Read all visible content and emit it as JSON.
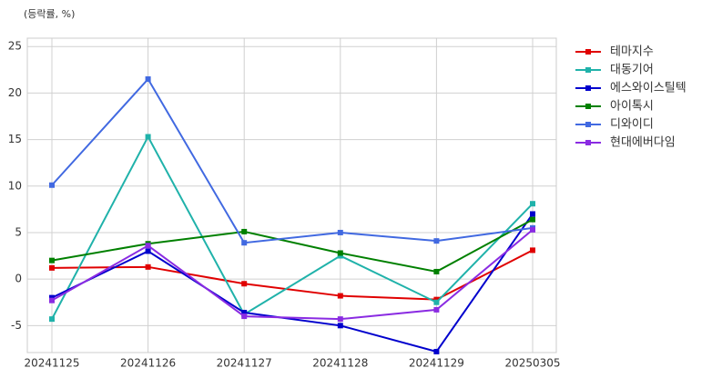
{
  "chart_data": {
    "type": "line",
    "annotation": "(등락률, %)",
    "categories": [
      "20241125",
      "20241126",
      "20241127",
      "20241128",
      "20241129",
      "20250305"
    ],
    "series": [
      {
        "name": "테마지수",
        "color": "#e00000",
        "values": [
          1.2,
          1.3,
          -0.5,
          -1.8,
          -2.2,
          3.1
        ]
      },
      {
        "name": "대동기어",
        "color": "#20b2aa",
        "values": [
          -4.3,
          15.3,
          -3.8,
          2.5,
          -2.5,
          8.1
        ]
      },
      {
        "name": "에스와이스틸텍",
        "color": "#0000cd",
        "values": [
          -2.0,
          3.0,
          -3.6,
          -5.0,
          -7.8,
          7.0
        ]
      },
      {
        "name": "아이톡시",
        "color": "#008000",
        "values": [
          2.0,
          3.8,
          5.1,
          2.8,
          0.8,
          6.4
        ]
      },
      {
        "name": "디와이디",
        "color": "#4169e1",
        "values": [
          10.1,
          21.5,
          3.9,
          5.0,
          4.1,
          5.5
        ]
      },
      {
        "name": "현대에버다임",
        "color": "#8a2be2",
        "values": [
          -2.3,
          3.6,
          -4.0,
          -4.3,
          -3.3,
          5.3
        ]
      }
    ],
    "ylim": [
      -7.9,
      25.9
    ],
    "yticks": [
      -5,
      0,
      5,
      10,
      15,
      20,
      25
    ],
    "grid": true,
    "legend": "outside right"
  }
}
